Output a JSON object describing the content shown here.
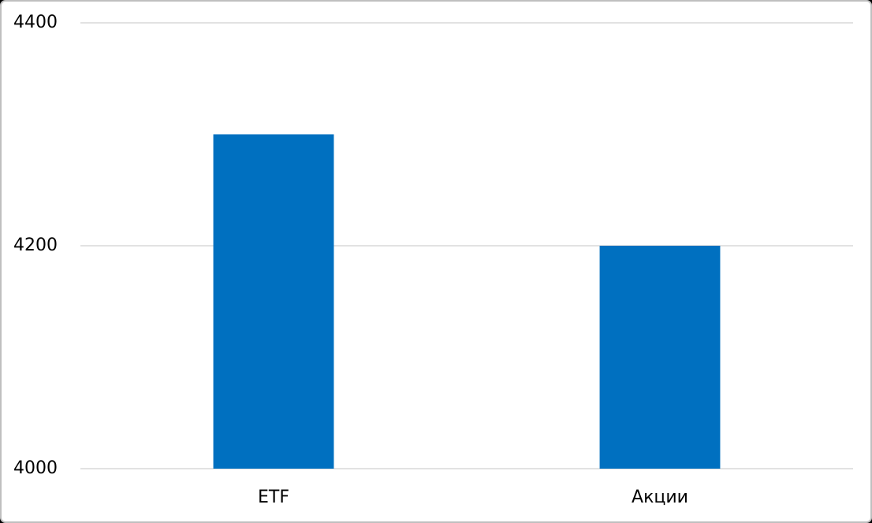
{
  "chart_data": {
    "type": "bar",
    "categories": [
      "ETF",
      "Акции"
    ],
    "values": [
      4300,
      4200
    ],
    "color": "#0070c0",
    "ylim": [
      4000,
      4400
    ],
    "yticks": [
      4000,
      4200,
      4400
    ],
    "grid": true
  }
}
